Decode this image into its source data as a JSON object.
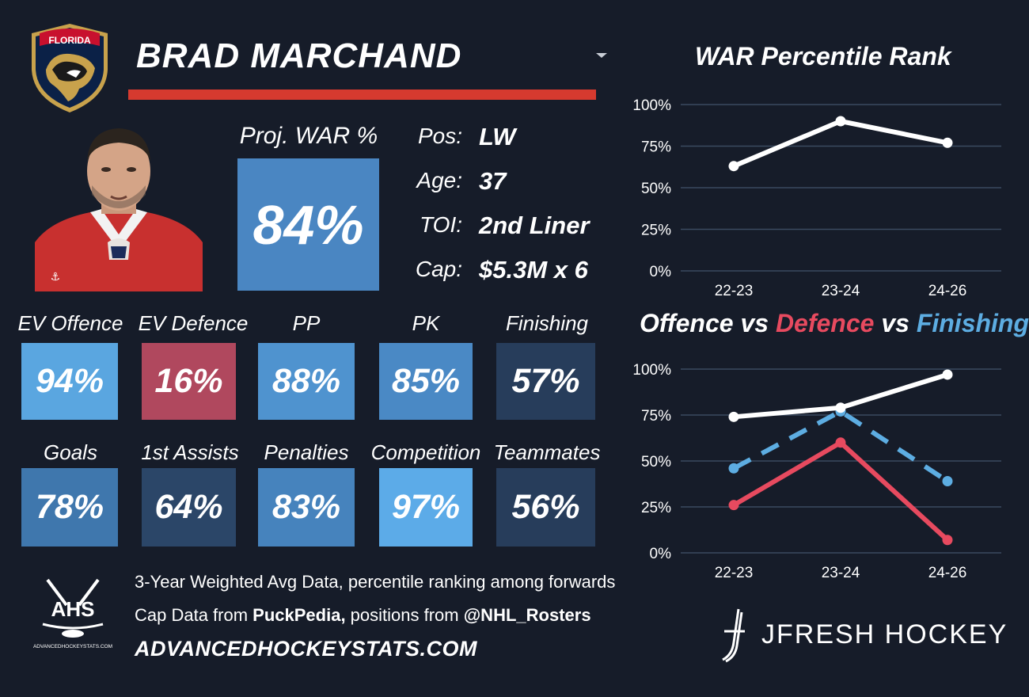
{
  "player": {
    "team_logo_text": "FLORIDA",
    "name": "BRAD MARCHAND"
  },
  "proj_war": {
    "label": "Proj. WAR %",
    "value": "84%",
    "color": "#4a86c2"
  },
  "bio": [
    {
      "label": "Pos:",
      "value": "LW"
    },
    {
      "label": "Age:",
      "value": "37"
    },
    {
      "label": "TOI:",
      "value": "2nd Liner"
    },
    {
      "label": "Cap:",
      "value": "$5.3M x 6"
    }
  ],
  "tiles": [
    {
      "label": "EV Offence",
      "value": "94%",
      "color": "#5aa6e0"
    },
    {
      "label": "EV Defence",
      "value": "16%",
      "color": "#b0485e"
    },
    {
      "label": "PP",
      "value": "88%",
      "color": "#4f93cf"
    },
    {
      "label": "PK",
      "value": "85%",
      "color": "#4a89c5"
    },
    {
      "label": "Finishing",
      "value": "57%",
      "color": "#273d5b"
    },
    {
      "label": "Goals",
      "value": "78%",
      "color": "#3f77ad"
    },
    {
      "label": "1st Assists",
      "value": "64%",
      "color": "#2b4668"
    },
    {
      "label": "Penalties",
      "value": "83%",
      "color": "#4683bd"
    },
    {
      "label": "Competition",
      "value": "97%",
      "color": "#5cabe8"
    },
    {
      "label": "Teammates",
      "value": "56%",
      "color": "#273d5b"
    }
  ],
  "footer": {
    "ahs_logo_text": "AHS",
    "ahs_logo_subtext": "ADVANCEDHOCKEYSTATS.COM",
    "line1": "3-Year Weighted Avg Data, percentile ranking among forwards",
    "line2_prefix": "Cap Data from ",
    "line2_source1": "PuckPedia,",
    "line2_middle": " positions from ",
    "line2_source2": "@NHL_Rosters",
    "website": "ADVANCEDHOCKEYSTATS.COM",
    "brand": "JFRESH HOCKEY"
  },
  "chart_data": [
    {
      "type": "line",
      "title": "WAR Percentile Rank",
      "categories": [
        "22-23",
        "23-24",
        "24-26"
      ],
      "yticks": [
        "0%",
        "25%",
        "50%",
        "75%",
        "100%"
      ],
      "ylim": [
        0,
        100
      ],
      "grid": true,
      "series": [
        {
          "values": [
            63,
            90,
            77
          ],
          "color": "#ffffff",
          "dash": false
        }
      ]
    },
    {
      "type": "line",
      "title_parts": {
        "a": "Offence",
        "vs1": " vs ",
        "b": "Defence",
        "vs2": " vs ",
        "c": "Finishing"
      },
      "categories": [
        "22-23",
        "23-24",
        "24-26"
      ],
      "yticks": [
        "0%",
        "25%",
        "50%",
        "75%",
        "100%"
      ],
      "ylim": [
        0,
        100
      ],
      "grid": true,
      "series": [
        {
          "name": "Offence",
          "values": [
            74,
            79,
            97
          ],
          "color": "#ffffff",
          "dash": false
        },
        {
          "name": "Defence",
          "values": [
            26,
            60,
            7
          ],
          "color": "#e74a5f",
          "dash": false
        },
        {
          "name": "Finishing",
          "values": [
            46,
            77,
            39
          ],
          "color": "#5dade2",
          "dash": true
        }
      ]
    }
  ]
}
